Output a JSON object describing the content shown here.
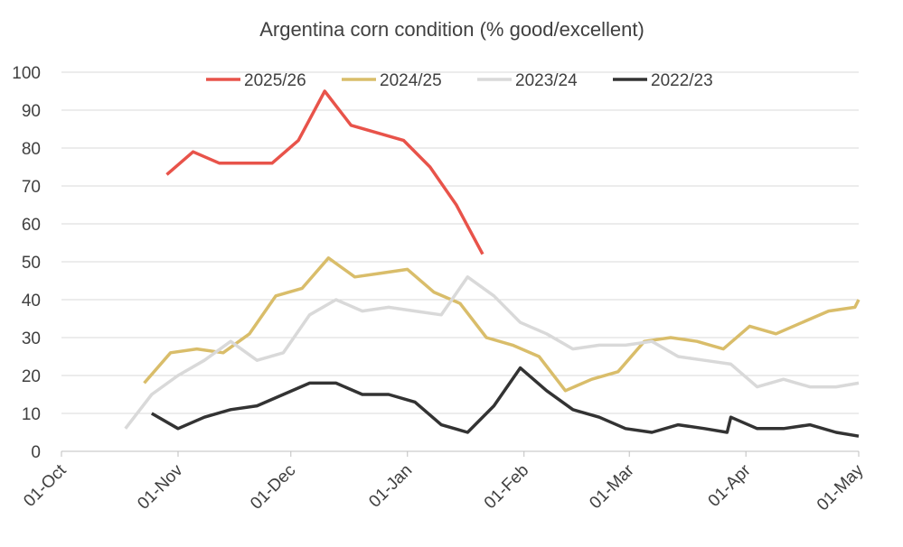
{
  "chart_data": {
    "type": "line",
    "title": "Argentina corn condition (% good/excellent)",
    "xlim": [
      0,
      212
    ],
    "xticks": [
      {
        "value": 0,
        "label": "01-Oct"
      },
      {
        "value": 31,
        "label": "01-Nov"
      },
      {
        "value": 61,
        "label": "01-Dec"
      },
      {
        "value": 92,
        "label": "01-Jan"
      },
      {
        "value": 123,
        "label": "01-Feb"
      },
      {
        "value": 151,
        "label": "01-Mar"
      },
      {
        "value": 182,
        "label": "01-Apr"
      },
      {
        "value": 212,
        "label": "01-May"
      }
    ],
    "ylim": [
      0,
      100
    ],
    "yticks": [
      0,
      10,
      20,
      30,
      40,
      50,
      60,
      70,
      80,
      90,
      100
    ],
    "grid": true,
    "legend": "top",
    "series": [
      {
        "name": "2025/26",
        "color": "#e8534a",
        "x": [
          28,
          35,
          42,
          49,
          56,
          63,
          70,
          77,
          84,
          91,
          98,
          105,
          112
        ],
        "values": [
          73,
          79,
          76,
          76,
          76,
          82,
          95,
          86,
          84,
          82,
          75,
          65,
          52
        ]
      },
      {
        "name": "2024/25",
        "color": "#d9bd6a",
        "x": [
          22,
          29,
          36,
          43,
          50,
          57,
          64,
          71,
          78,
          85,
          92,
          99,
          106,
          113,
          120,
          127,
          134,
          141,
          148,
          155,
          162,
          169,
          176,
          183,
          190,
          197,
          204,
          211,
          212
        ],
        "values": [
          18,
          26,
          27,
          26,
          31,
          41,
          43,
          51,
          46,
          47,
          48,
          42,
          39,
          30,
          28,
          25,
          16,
          19,
          21,
          29,
          30,
          29,
          27,
          33,
          31,
          34,
          37,
          38,
          40
        ]
      },
      {
        "name": "2023/24",
        "color": "#d9d9d9",
        "x": [
          17,
          24,
          31,
          38,
          45,
          52,
          59,
          66,
          73,
          80,
          87,
          94,
          101,
          108,
          115,
          122,
          129,
          136,
          143,
          150,
          157,
          164,
          171,
          178,
          185,
          192,
          199,
          206,
          212
        ],
        "values": [
          6,
          15,
          20,
          24,
          29,
          24,
          26,
          36,
          40,
          37,
          38,
          37,
          36,
          46,
          41,
          34,
          31,
          27,
          28,
          28,
          29,
          25,
          24,
          23,
          17,
          19,
          17,
          17,
          18
        ]
      },
      {
        "name": "2022/23",
        "color": "#333333",
        "x": [
          24,
          31,
          38,
          45,
          52,
          59,
          66,
          73,
          80,
          87,
          94,
          101,
          108,
          115,
          122,
          129,
          136,
          143,
          150,
          157,
          164,
          171,
          177,
          178,
          185,
          192,
          199,
          206,
          212
        ],
        "values": [
          10,
          6,
          9,
          11,
          12,
          15,
          18,
          18,
          15,
          15,
          13,
          7,
          5,
          12,
          22,
          16,
          11,
          9,
          6,
          5,
          7,
          6,
          5,
          9,
          6,
          6,
          7,
          5,
          4
        ]
      }
    ]
  }
}
